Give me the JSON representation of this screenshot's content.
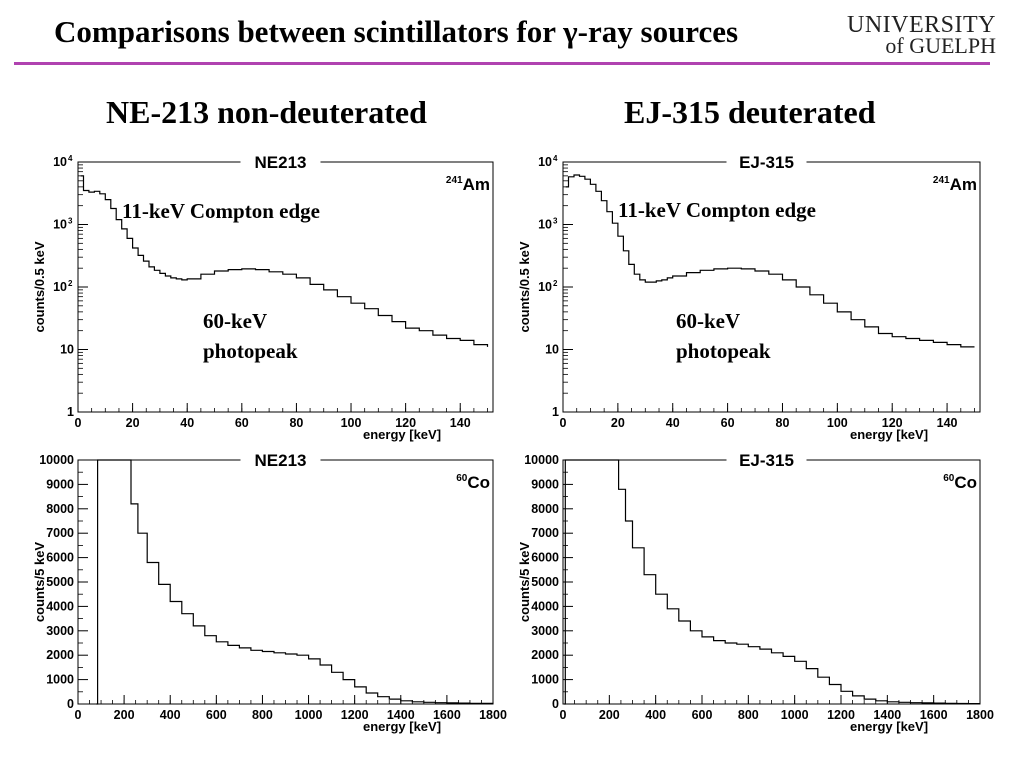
{
  "title": "Comparisons between scintillators for γ-ray sources",
  "logo": {
    "line1": "UNIVERSITY",
    "line2": "of GUELPH"
  },
  "columns": {
    "left": "NE-213 non-deuterated",
    "right": "EJ-315 deuterated"
  },
  "annotations": {
    "compton_left": "11-keV Compton edge",
    "photopeak_left": [
      "60-keV",
      "photopeak"
    ],
    "compton_right": "11-keV Compton edge",
    "photopeak_right": [
      "60-keV",
      "photopeak"
    ]
  },
  "colors": {
    "title_rule": "#b042b0",
    "trace": "#000000"
  },
  "chart_data": [
    {
      "id": "ne213-am",
      "type": "line",
      "title": "NE213",
      "source": {
        "mass": "241",
        "element": "Am"
      },
      "xlabel": "energy [keV]",
      "ylabel": "counts/0.5 keV",
      "xlim": [
        0,
        152
      ],
      "ylim": [
        1,
        10000
      ],
      "yscale": "log",
      "xticks": [
        0,
        20,
        40,
        60,
        80,
        100,
        120,
        140
      ],
      "yticks": [
        {
          "v": 1,
          "label": "1"
        },
        {
          "v": 10,
          "label": "10"
        },
        {
          "v": 100,
          "label": "10",
          "exp": "2"
        },
        {
          "v": 1000,
          "label": "10",
          "exp": "3"
        },
        {
          "v": 10000,
          "label": "10",
          "exp": "4"
        }
      ],
      "x": [
        1,
        2,
        4,
        6,
        8,
        10,
        12,
        14,
        16,
        18,
        20,
        22,
        24,
        26,
        28,
        30,
        32,
        34,
        36,
        38,
        40,
        45,
        50,
        55,
        60,
        65,
        70,
        75,
        80,
        85,
        90,
        95,
        100,
        105,
        110,
        115,
        120,
        125,
        130,
        135,
        140,
        145,
        150
      ],
      "y": [
        6000,
        3500,
        3300,
        3400,
        3100,
        2500,
        1800,
        1200,
        850,
        600,
        420,
        320,
        260,
        210,
        185,
        165,
        150,
        140,
        135,
        130,
        135,
        160,
        180,
        190,
        195,
        190,
        175,
        160,
        140,
        110,
        90,
        70,
        55,
        45,
        35,
        28,
        22,
        20,
        17,
        15,
        14,
        12,
        11
      ]
    },
    {
      "id": "ej315-am",
      "type": "line",
      "title": "EJ-315",
      "source": {
        "mass": "241",
        "element": "Am"
      },
      "xlabel": "energy [keV]",
      "ylabel": "counts/0.5 keV",
      "xlim": [
        0,
        152
      ],
      "ylim": [
        1,
        10000
      ],
      "yscale": "log",
      "xticks": [
        0,
        20,
        40,
        60,
        80,
        100,
        120,
        140
      ],
      "yticks": [
        {
          "v": 1,
          "label": "1"
        },
        {
          "v": 10,
          "label": "10"
        },
        {
          "v": 100,
          "label": "10",
          "exp": "2"
        },
        {
          "v": 1000,
          "label": "10",
          "exp": "3"
        },
        {
          "v": 10000,
          "label": "10",
          "exp": "4"
        }
      ],
      "x": [
        1,
        2,
        4,
        6,
        8,
        10,
        12,
        14,
        16,
        18,
        20,
        22,
        24,
        26,
        28,
        30,
        32,
        34,
        36,
        38,
        40,
        45,
        50,
        55,
        60,
        65,
        70,
        75,
        80,
        85,
        90,
        95,
        100,
        105,
        110,
        115,
        120,
        125,
        130,
        135,
        140,
        145,
        150
      ],
      "y": [
        4000,
        5800,
        6200,
        5900,
        5300,
        4400,
        3400,
        2400,
        1600,
        1050,
        650,
        380,
        230,
        160,
        130,
        120,
        120,
        125,
        130,
        140,
        150,
        170,
        185,
        195,
        200,
        195,
        180,
        160,
        130,
        100,
        75,
        55,
        40,
        30,
        23,
        18,
        16,
        15,
        14,
        13,
        12,
        11,
        11
      ]
    },
    {
      "id": "ne213-co",
      "type": "line",
      "title": "NE213",
      "source": {
        "mass": "60",
        "element": "Co"
      },
      "xlabel": "energy [keV]",
      "ylabel": "counts/5 keV",
      "xlim": [
        0,
        1800
      ],
      "ylim": [
        0,
        10000
      ],
      "yscale": "linear",
      "xticks": [
        0,
        200,
        400,
        600,
        800,
        1000,
        1200,
        1400,
        1600,
        1800
      ],
      "yticks": [
        {
          "v": 0,
          "label": "0"
        },
        {
          "v": 1000,
          "label": "1000"
        },
        {
          "v": 2000,
          "label": "2000"
        },
        {
          "v": 3000,
          "label": "3000"
        },
        {
          "v": 4000,
          "label": "4000"
        },
        {
          "v": 5000,
          "label": "5000"
        },
        {
          "v": 6000,
          "label": "6000"
        },
        {
          "v": 7000,
          "label": "7000"
        },
        {
          "v": 8000,
          "label": "8000"
        },
        {
          "v": 9000,
          "label": "9000"
        },
        {
          "v": 10000,
          "label": "10000"
        }
      ],
      "x": [
        80,
        85,
        200,
        230,
        260,
        300,
        350,
        400,
        450,
        500,
        550,
        600,
        650,
        700,
        750,
        800,
        850,
        900,
        950,
        1000,
        1050,
        1100,
        1150,
        1200,
        1250,
        1300,
        1350,
        1400,
        1450,
        1500,
        1550,
        1600,
        1650,
        1700,
        1750,
        1800
      ],
      "y": [
        0,
        10000,
        10000,
        8200,
        7000,
        5800,
        4900,
        4200,
        3700,
        3200,
        2800,
        2550,
        2400,
        2300,
        2200,
        2150,
        2100,
        2050,
        2000,
        1850,
        1600,
        1300,
        1000,
        700,
        450,
        300,
        200,
        130,
        90,
        70,
        55,
        45,
        35,
        30,
        25,
        20
      ]
    },
    {
      "id": "ej315-co",
      "type": "line",
      "title": "EJ-315",
      "source": {
        "mass": "60",
        "element": "Co"
      },
      "xlabel": "energy [keV]",
      "ylabel": "counts/5 keV",
      "xlim": [
        0,
        1800
      ],
      "ylim": [
        0,
        10000
      ],
      "yscale": "linear",
      "xticks": [
        0,
        200,
        400,
        600,
        800,
        1000,
        1200,
        1400,
        1600,
        1800
      ],
      "yticks": [
        {
          "v": 0,
          "label": "0"
        },
        {
          "v": 1000,
          "label": "1000"
        },
        {
          "v": 2000,
          "label": "2000"
        },
        {
          "v": 3000,
          "label": "3000"
        },
        {
          "v": 4000,
          "label": "4000"
        },
        {
          "v": 5000,
          "label": "5000"
        },
        {
          "v": 6000,
          "label": "6000"
        },
        {
          "v": 7000,
          "label": "7000"
        },
        {
          "v": 8000,
          "label": "8000"
        },
        {
          "v": 9000,
          "label": "9000"
        },
        {
          "v": 10000,
          "label": "10000"
        }
      ],
      "x": [
        5,
        10,
        215,
        240,
        270,
        300,
        350,
        400,
        450,
        500,
        550,
        600,
        650,
        700,
        750,
        800,
        850,
        900,
        950,
        1000,
        1050,
        1100,
        1150,
        1200,
        1250,
        1300,
        1350,
        1400,
        1450,
        1500,
        1550,
        1600,
        1650,
        1700,
        1750,
        1800
      ],
      "y": [
        0,
        10000,
        10000,
        8800,
        7500,
        6400,
        5300,
        4500,
        3900,
        3400,
        3000,
        2750,
        2600,
        2500,
        2450,
        2350,
        2250,
        2100,
        1950,
        1750,
        1450,
        1100,
        800,
        520,
        330,
        200,
        130,
        90,
        70,
        55,
        45,
        35,
        28,
        22,
        18,
        15
      ]
    }
  ]
}
